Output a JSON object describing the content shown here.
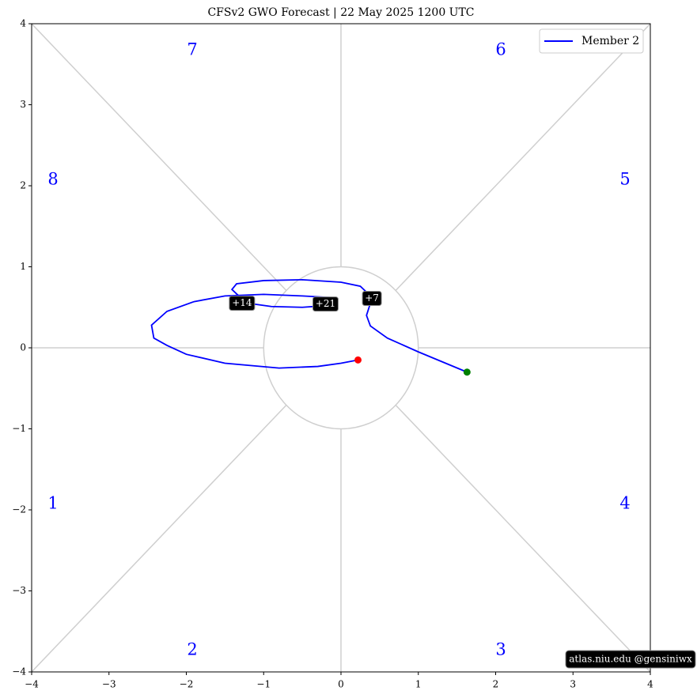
{
  "chart_data": {
    "type": "line",
    "title": "CFSv2 GWO Forecast   |   22  May  2025 1200 UTC",
    "series": [
      {
        "name": "Member 2",
        "color": "#0000ff",
        "x": [
          1.63,
          1.0,
          0.6,
          0.38,
          0.33,
          0.38,
          0.36,
          0.25,
          0.0,
          -0.5,
          -1.0,
          -1.35,
          -1.41,
          -1.3,
          -1.2,
          -0.9,
          -0.5,
          -0.2,
          -0.05,
          -0.11,
          -0.5,
          -1.0,
          -1.5,
          -1.9,
          -2.25,
          -2.45,
          -2.42,
          -2.25,
          -2.0,
          -1.5,
          -0.8,
          -0.3,
          0.0,
          0.22
        ],
        "y": [
          -0.3,
          -0.05,
          0.12,
          0.27,
          0.4,
          0.55,
          0.66,
          0.76,
          0.81,
          0.84,
          0.83,
          0.79,
          0.72,
          0.62,
          0.55,
          0.51,
          0.5,
          0.52,
          0.57,
          0.62,
          0.64,
          0.66,
          0.64,
          0.57,
          0.45,
          0.28,
          0.12,
          0.03,
          -0.08,
          -0.19,
          -0.25,
          -0.23,
          -0.19,
          -0.15
        ]
      }
    ],
    "start_color": "#008000",
    "end_color": "#ff0000",
    "annotations": [
      {
        "text": "+7",
        "x": 0.4,
        "y": 0.61
      },
      {
        "text": "+14",
        "x": -1.28,
        "y": 0.55
      },
      {
        "text": "+21",
        "x": -0.2,
        "y": 0.54
      }
    ],
    "phase_labels": [
      "1",
      "2",
      "3",
      "4",
      "5",
      "6",
      "7",
      "8"
    ],
    "phase_color": "#0000ff",
    "legend": "upper right",
    "credit": "atlas.niu.edu  @gensiniwx",
    "xlim": [
      -4,
      4
    ],
    "ylim": [
      -4,
      4
    ],
    "xticks": [
      {
        "value": -4,
        "label": "−4"
      },
      {
        "value": -3,
        "label": "−3"
      },
      {
        "value": -2,
        "label": "−2"
      },
      {
        "value": -1,
        "label": "−1"
      },
      0,
      1,
      2,
      3,
      4
    ],
    "yticks": [
      {
        "value": -4,
        "label": "−4"
      },
      {
        "value": -3,
        "label": "−3"
      },
      {
        "value": -2,
        "label": "−2"
      },
      {
        "value": -1,
        "label": "−1"
      },
      0,
      1,
      2,
      3,
      4
    ]
  }
}
